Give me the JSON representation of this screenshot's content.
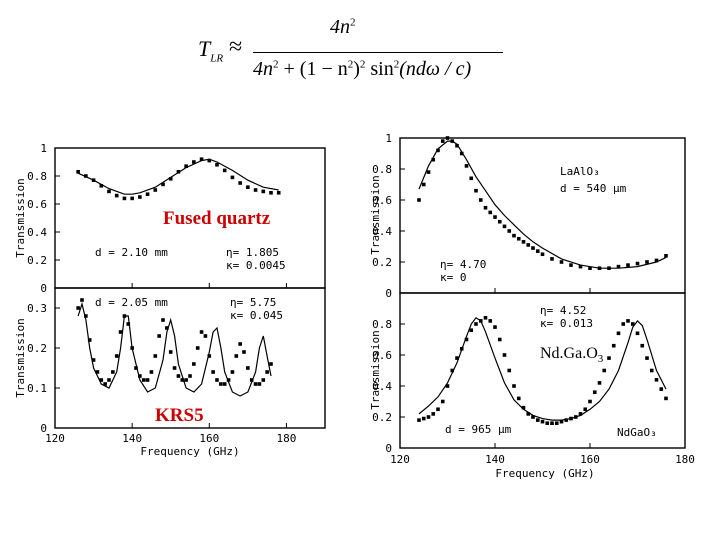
{
  "formula": {
    "lhs": "T",
    "lhs_sub": "LR",
    "approx": "≈",
    "numerator": "4n",
    "numerator_sup": "2",
    "den_a": "4n",
    "den_a_sup": "2",
    "den_b": " + (1 − n",
    "den_b_sup": "2",
    "den_c": ")",
    "den_c_sup": "2",
    "den_d": " sin",
    "den_d_sup": "2",
    "den_e": "(ndω / c)"
  },
  "labels": {
    "fused_quartz": "Fused quartz",
    "krs5": "KRS5",
    "ndgao3_red_base": "Nd.Ga.O",
    "ndgao3_red_sub": "3",
    "transmission": "Transmission",
    "frequency_ghz": "Frequency (GHz)"
  },
  "panel_notes": {
    "fq_d": "d = 2.10 mm",
    "fq_eta": "η= 1.805",
    "fq_kappa": "κ= 0.0045",
    "krs_d": "d = 2.05 mm",
    "krs_eta": "η= 5.75",
    "krs_kappa": "κ= 0.045",
    "la_name": "LaAlO₃",
    "la_d": "d = 540 μm",
    "la_eta": "η= 4.70",
    "la_kappa": "κ= 0",
    "nd_eta": "η= 4.52",
    "nd_kappa": "κ= 0.013",
    "nd_d": "d = 965 μm",
    "nd_name": "NdGaO₃"
  },
  "colors": {
    "axis": "#000000",
    "highlight_text": "#cc0000",
    "background": "#ffffff"
  },
  "chart_data": [
    {
      "id": "fused-quartz",
      "type": "scatter",
      "xlabel": "Frequency (GHz)",
      "ylabel": "Transmission",
      "xlim": [
        120,
        190
      ],
      "ylim": [
        0,
        1
      ],
      "yticks": [
        0,
        0.2,
        0.4,
        0.6,
        0.8,
        1
      ],
      "ytick_labels": [
        "0",
        "0.2",
        "0.4",
        "0.6",
        "0.8",
        "1"
      ],
      "xticks": [
        120,
        140,
        160,
        180
      ],
      "xtick_labels": [],
      "series": [
        {
          "name": "measured",
          "x": [
            126,
            128,
            130,
            132,
            134,
            136,
            138,
            140,
            142,
            144,
            146,
            148,
            150,
            152,
            154,
            156,
            158,
            160,
            162,
            164,
            166,
            168,
            170,
            172,
            174,
            176,
            178
          ],
          "values": [
            0.83,
            0.8,
            0.77,
            0.73,
            0.69,
            0.66,
            0.64,
            0.64,
            0.65,
            0.67,
            0.7,
            0.74,
            0.78,
            0.83,
            0.87,
            0.9,
            0.92,
            0.91,
            0.88,
            0.84,
            0.79,
            0.75,
            0.72,
            0.7,
            0.69,
            0.68,
            0.68
          ]
        },
        {
          "name": "fit",
          "x": [
            126,
            130,
            134,
            138,
            140,
            142,
            146,
            150,
            154,
            158,
            160,
            162,
            166,
            170,
            174,
            178
          ],
          "values": [
            0.82,
            0.77,
            0.71,
            0.67,
            0.67,
            0.68,
            0.72,
            0.79,
            0.86,
            0.91,
            0.92,
            0.9,
            0.84,
            0.77,
            0.72,
            0.7
          ]
        }
      ]
    },
    {
      "id": "krs5",
      "type": "scatter",
      "xlabel": "Frequency (GHz)",
      "ylabel": "Transmission",
      "xlim": [
        120,
        190
      ],
      "ylim": [
        0,
        0.35
      ],
      "yticks": [
        0,
        0.1,
        0.2,
        0.3
      ],
      "ytick_labels": [
        "0",
        "0.1",
        "0.2",
        "0.3"
      ],
      "xticks": [
        120,
        140,
        160,
        180
      ],
      "xtick_labels": [
        "120",
        "140",
        "160",
        "180"
      ],
      "series": [
        {
          "name": "measured",
          "x": [
            126,
            127,
            128,
            129,
            130,
            131,
            132,
            133,
            134,
            135,
            136,
            137,
            138,
            139,
            140,
            141,
            142,
            143,
            144,
            145,
            146,
            147,
            148,
            149,
            150,
            151,
            152,
            153,
            154,
            155,
            156,
            157,
            158,
            159,
            160,
            161,
            162,
            163,
            164,
            165,
            166,
            167,
            168,
            169,
            170,
            171,
            172,
            173,
            174,
            175,
            176
          ],
          "values": [
            0.3,
            0.32,
            0.28,
            0.22,
            0.17,
            0.14,
            0.12,
            0.11,
            0.12,
            0.14,
            0.18,
            0.24,
            0.28,
            0.26,
            0.2,
            0.15,
            0.13,
            0.12,
            0.12,
            0.14,
            0.18,
            0.23,
            0.27,
            0.25,
            0.19,
            0.15,
            0.13,
            0.12,
            0.12,
            0.13,
            0.16,
            0.2,
            0.24,
            0.23,
            0.18,
            0.14,
            0.12,
            0.11,
            0.11,
            0.12,
            0.14,
            0.18,
            0.21,
            0.19,
            0.15,
            0.12,
            0.11,
            0.11,
            0.12,
            0.14,
            0.16
          ]
        },
        {
          "name": "fit",
          "x": [
            126,
            127,
            128,
            129,
            130,
            132,
            134,
            136,
            137,
            138,
            139,
            140,
            142,
            144,
            146,
            148,
            149,
            150,
            151,
            152,
            154,
            156,
            158,
            160,
            161,
            162,
            163,
            164,
            166,
            168,
            170,
            172,
            173,
            174,
            175,
            176
          ],
          "values": [
            0.28,
            0.31,
            0.27,
            0.2,
            0.15,
            0.11,
            0.1,
            0.14,
            0.2,
            0.28,
            0.28,
            0.2,
            0.12,
            0.09,
            0.1,
            0.17,
            0.24,
            0.27,
            0.23,
            0.16,
            0.1,
            0.09,
            0.11,
            0.19,
            0.24,
            0.25,
            0.2,
            0.14,
            0.09,
            0.08,
            0.09,
            0.14,
            0.2,
            0.23,
            0.18,
            0.13
          ]
        }
      ]
    },
    {
      "id": "laalo3",
      "type": "scatter",
      "xlabel": "Frequency (GHz)",
      "ylabel": "Transmission",
      "xlim": [
        120,
        180
      ],
      "ylim": [
        0,
        1
      ],
      "yticks": [
        0,
        0.2,
        0.4,
        0.6,
        0.8,
        1
      ],
      "ytick_labels": [
        "0",
        "0.2",
        "0.4",
        "0.6",
        "0.8",
        "1"
      ],
      "xticks": [
        120,
        140,
        160,
        180
      ],
      "xtick_labels": [],
      "series": [
        {
          "name": "measured",
          "x": [
            124,
            125,
            126,
            127,
            128,
            129,
            130,
            131,
            132,
            133,
            134,
            135,
            136,
            137,
            138,
            139,
            140,
            141,
            142,
            143,
            144,
            145,
            146,
            147,
            148,
            149,
            150,
            152,
            154,
            156,
            158,
            160,
            162,
            164,
            166,
            168,
            170,
            172,
            174,
            176
          ],
          "values": [
            0.6,
            0.7,
            0.78,
            0.86,
            0.92,
            0.98,
            1.0,
            0.98,
            0.95,
            0.9,
            0.82,
            0.74,
            0.66,
            0.6,
            0.55,
            0.52,
            0.49,
            0.46,
            0.43,
            0.4,
            0.37,
            0.35,
            0.33,
            0.31,
            0.29,
            0.27,
            0.25,
            0.22,
            0.2,
            0.18,
            0.17,
            0.16,
            0.16,
            0.16,
            0.17,
            0.18,
            0.19,
            0.2,
            0.21,
            0.24
          ]
        },
        {
          "name": "fit",
          "x": [
            124,
            126,
            128,
            130,
            131,
            132,
            134,
            136,
            138,
            140,
            142,
            144,
            146,
            148,
            150,
            154,
            158,
            162,
            166,
            170,
            174,
            176
          ],
          "values": [
            0.67,
            0.82,
            0.93,
            0.98,
            0.98,
            0.96,
            0.86,
            0.75,
            0.66,
            0.57,
            0.5,
            0.44,
            0.38,
            0.33,
            0.29,
            0.22,
            0.18,
            0.16,
            0.16,
            0.17,
            0.2,
            0.23
          ]
        }
      ]
    },
    {
      "id": "ndgao3",
      "type": "scatter",
      "xlabel": "Frequency (GHz)",
      "ylabel": "Transmission",
      "xlim": [
        120,
        180
      ],
      "ylim": [
        0,
        1
      ],
      "yticks": [
        0,
        0.2,
        0.4,
        0.6,
        0.8
      ],
      "ytick_labels": [
        "0",
        "0.2",
        "0.4",
        "0.6",
        "0.8"
      ],
      "xticks": [
        120,
        140,
        160,
        180
      ],
      "xtick_labels": [
        "120",
        "140",
        "160",
        "180"
      ],
      "series": [
        {
          "name": "measured",
          "x": [
            124,
            125,
            126,
            127,
            128,
            129,
            130,
            131,
            132,
            133,
            134,
            135,
            136,
            137,
            138,
            139,
            140,
            141,
            142,
            143,
            144,
            145,
            146,
            147,
            148,
            149,
            150,
            151,
            152,
            153,
            154,
            155,
            156,
            157,
            158,
            159,
            160,
            161,
            162,
            163,
            164,
            165,
            166,
            167,
            168,
            169,
            170,
            171,
            172,
            173,
            174,
            175,
            176
          ],
          "values": [
            0.18,
            0.19,
            0.2,
            0.22,
            0.25,
            0.3,
            0.4,
            0.5,
            0.58,
            0.64,
            0.7,
            0.76,
            0.8,
            0.82,
            0.84,
            0.82,
            0.78,
            0.7,
            0.6,
            0.5,
            0.4,
            0.32,
            0.26,
            0.22,
            0.2,
            0.18,
            0.17,
            0.16,
            0.16,
            0.16,
            0.17,
            0.18,
            0.19,
            0.2,
            0.22,
            0.25,
            0.3,
            0.36,
            0.42,
            0.5,
            0.58,
            0.66,
            0.74,
            0.8,
            0.82,
            0.8,
            0.74,
            0.66,
            0.58,
            0.5,
            0.44,
            0.38,
            0.32
          ]
        },
        {
          "name": "fit",
          "x": [
            124,
            126,
            128,
            130,
            132,
            134,
            135,
            136,
            137,
            138,
            140,
            142,
            144,
            146,
            148,
            150,
            152,
            154,
            156,
            158,
            160,
            162,
            164,
            166,
            168,
            169,
            170,
            171,
            172,
            174,
            176
          ],
          "values": [
            0.22,
            0.27,
            0.33,
            0.42,
            0.55,
            0.72,
            0.8,
            0.84,
            0.82,
            0.75,
            0.58,
            0.42,
            0.31,
            0.25,
            0.21,
            0.19,
            0.18,
            0.18,
            0.19,
            0.21,
            0.25,
            0.3,
            0.38,
            0.5,
            0.68,
            0.78,
            0.82,
            0.79,
            0.7,
            0.5,
            0.38
          ]
        }
      ]
    }
  ]
}
